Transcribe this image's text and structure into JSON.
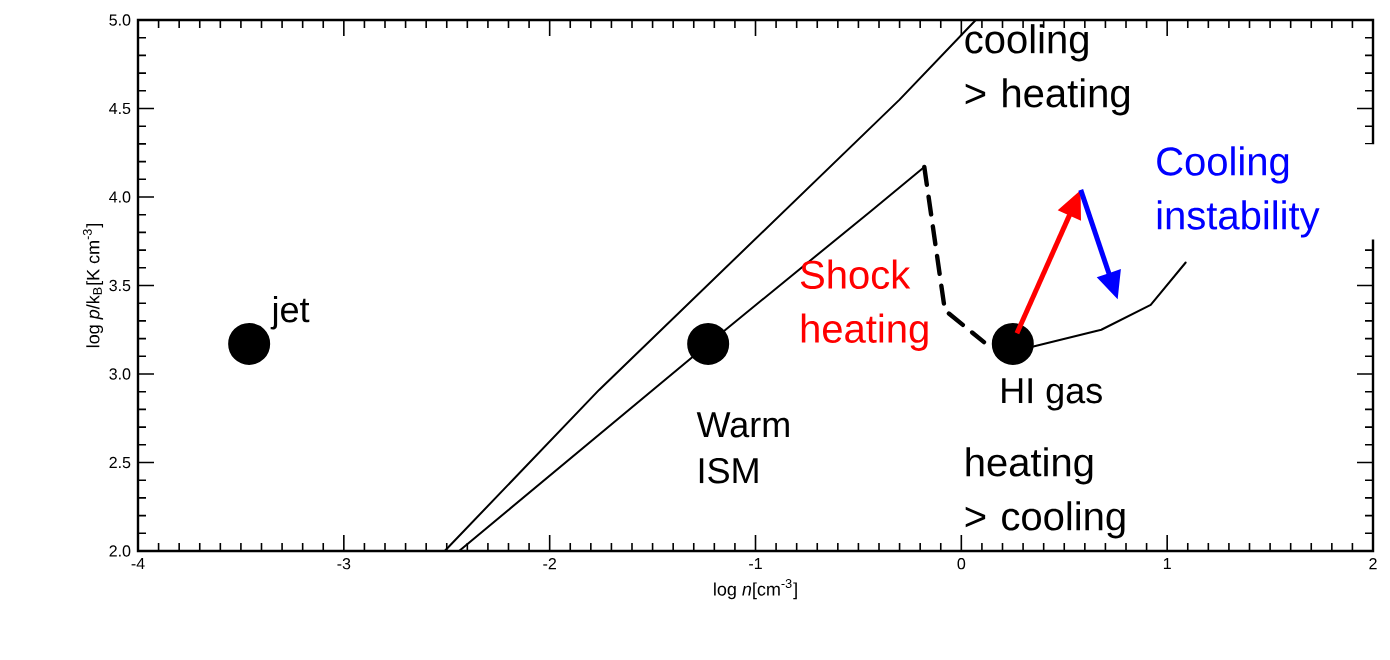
{
  "chart_data": {
    "type": "line",
    "xlabel": "log *n*[cm$^{-3}$]",
    "ylabel": "log *p*/k$_{B}$[K cm$^{-3}$]",
    "xlim": [
      -4,
      2
    ],
    "ylim": [
      2,
      5
    ],
    "xticks": [
      -4,
      -3,
      -2,
      -1,
      0,
      1,
      2
    ],
    "yticks": [
      {
        "value": 2,
        "label": "2.0"
      },
      2.5,
      {
        "value": 3,
        "label": "3.0"
      },
      3.5,
      {
        "value": 4,
        "label": "4.0"
      },
      4.5,
      {
        "value": 5,
        "label": "5.0"
      }
    ],
    "grid": false,
    "series": [
      {
        "x": [
          -2.51,
          -1.76,
          -1.03,
          -0.3,
          0.07
        ],
        "values": [
          2.0,
          2.91,
          3.73,
          4.55,
          5.0
        ],
        "color": "#000000"
      },
      {
        "x": [
          -2.44,
          -1.23,
          -0.44,
          -0.18
        ],
        "values": [
          2.0,
          3.17,
          3.92,
          4.17
        ],
        "color": "#000000"
      },
      {
        "x": [
          -0.18,
          -0.08,
          0.11
        ],
        "values": [
          4.17,
          3.36,
          3.18
        ],
        "color": "#000000",
        "line_style": "dashed"
      },
      {
        "x": [
          0.33,
          0.68,
          0.92,
          1.09
        ],
        "values": [
          3.15,
          3.25,
          3.39,
          3.63
        ],
        "color": "#000000"
      },
      {
        "type": "scatter",
        "x": [
          -3.46,
          -1.23,
          0.25
        ],
        "values": [
          3.17,
          3.17,
          3.17
        ],
        "color": "#000000"
      }
    ],
    "annotations": [
      {
        "text": "jet",
        "x": -3.46,
        "y": 3.17
      },
      {
        "text": "Warm ISM",
        "x": -1.23,
        "y": 3.17
      },
      {
        "text": "HI gas",
        "x": 0.25,
        "y": 3.17
      },
      "cooling > heating",
      "heating > cooling",
      "Shock heating",
      "Cooling instability"
    ]
  }
}
